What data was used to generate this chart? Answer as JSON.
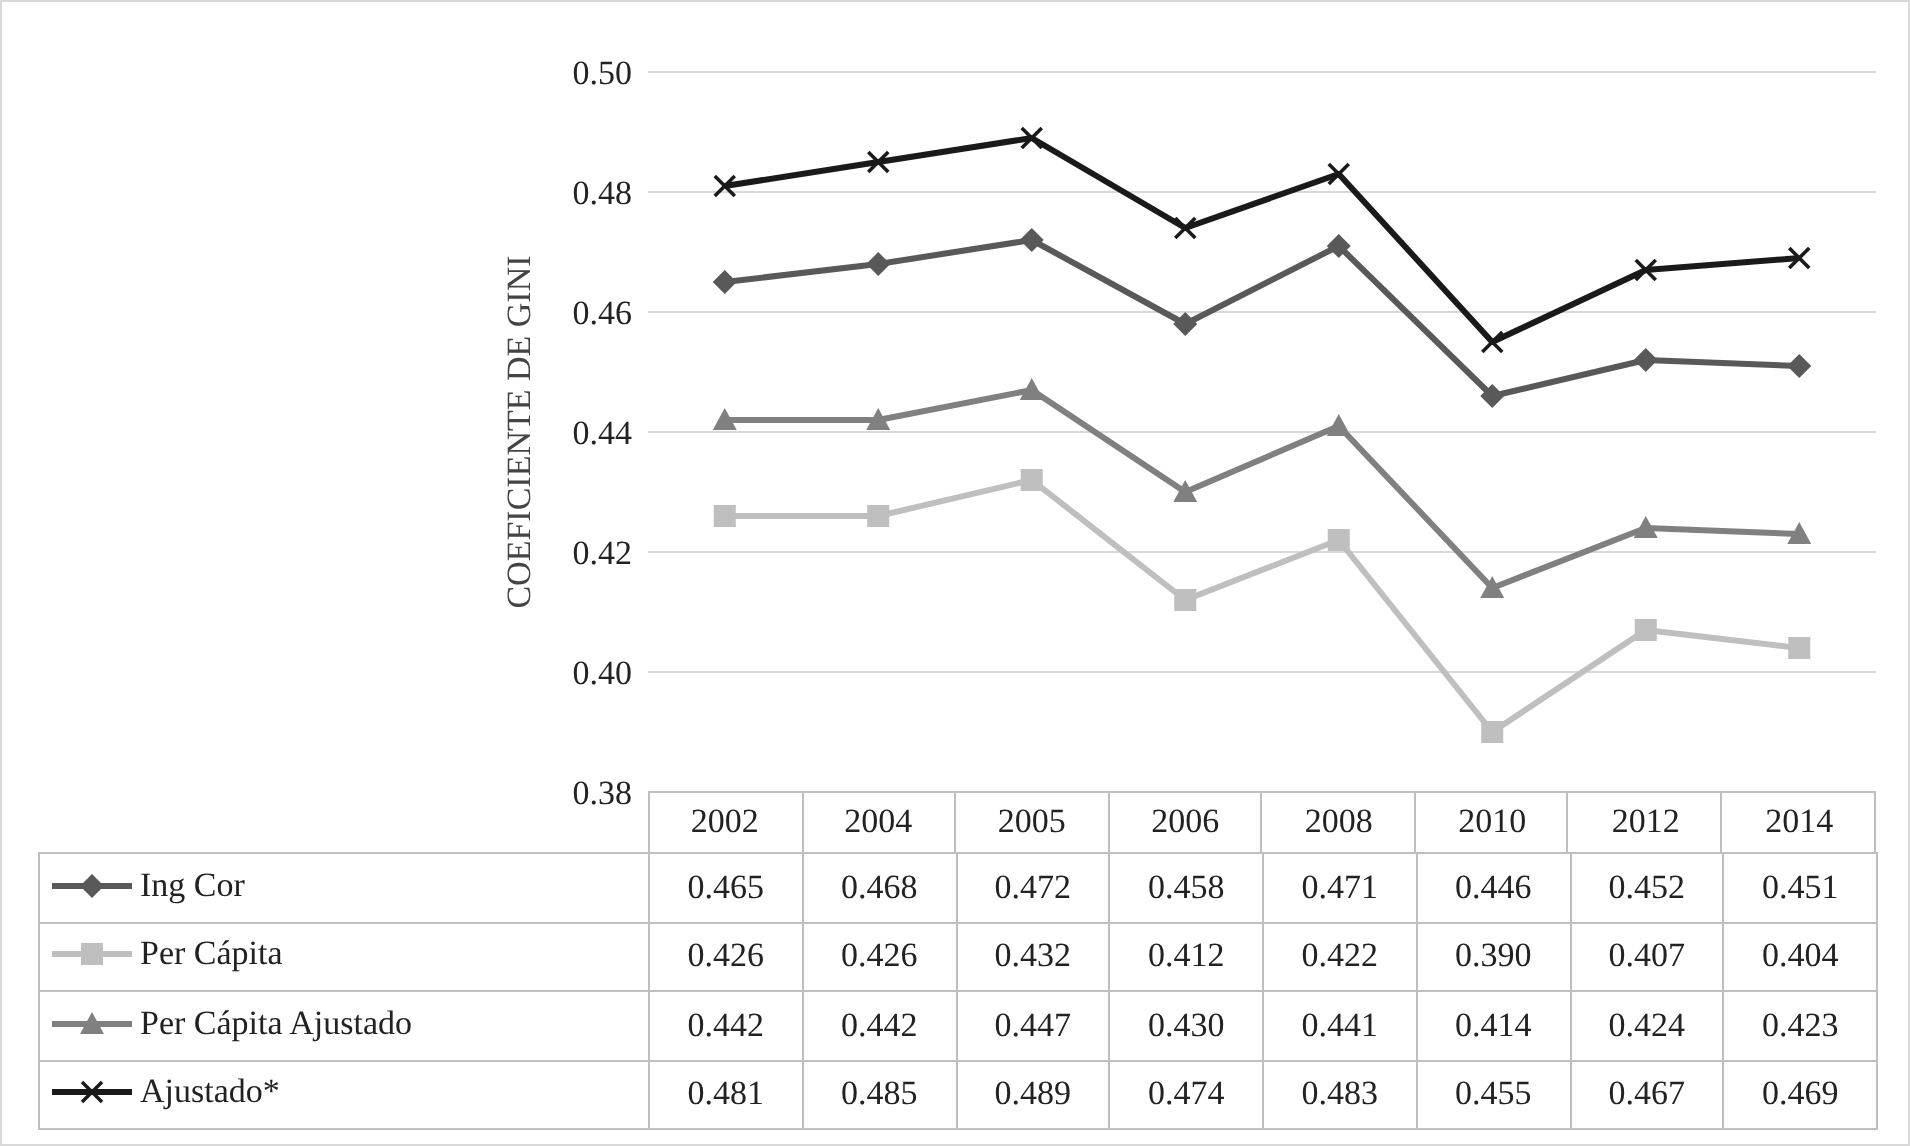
{
  "chart_data": {
    "type": "line",
    "ylabel": "COEFICIENTE DE GINI",
    "categories": [
      "2002",
      "2004",
      "2005",
      "2006",
      "2008",
      "2010",
      "2012",
      "2014"
    ],
    "ylim": [
      0.38,
      0.5
    ],
    "yticks": [
      {
        "value": 0.38,
        "label": "0.38"
      },
      {
        "value": 0.4,
        "label": "0.40"
      },
      {
        "value": 0.42,
        "label": "0.42"
      },
      {
        "value": 0.44,
        "label": "0.44"
      },
      {
        "value": 0.46,
        "label": "0.46"
      },
      {
        "value": 0.48,
        "label": "0.48"
      },
      {
        "value": 0.5,
        "label": "0.50"
      }
    ],
    "grid": "y",
    "legend": "bottom left",
    "line_style": "solid",
    "series": [
      {
        "name": "Ing Cor",
        "color": "#595959",
        "marker": "diamond",
        "values": [
          0.465,
          0.468,
          0.472,
          0.458,
          0.471,
          0.446,
          0.452,
          0.451
        ],
        "value_labels": [
          "0.465",
          "0.468",
          "0.472",
          "0.458",
          "0.471",
          "0.446",
          "0.452",
          "0.451"
        ]
      },
      {
        "name": "Per Cápita",
        "color": "#bfbfbf",
        "marker": "square",
        "values": [
          0.426,
          0.426,
          0.432,
          0.412,
          0.422,
          0.39,
          0.407,
          0.404
        ],
        "value_labels": [
          "0.426",
          "0.426",
          "0.432",
          "0.412",
          "0.422",
          "0.390",
          "0.407",
          "0.404"
        ]
      },
      {
        "name": "Per Cápita Ajustado",
        "color": "#808080",
        "marker": "triangle",
        "values": [
          0.442,
          0.442,
          0.447,
          0.43,
          0.441,
          0.414,
          0.424,
          0.423
        ],
        "value_labels": [
          "0.442",
          "0.442",
          "0.447",
          "0.430",
          "0.441",
          "0.414",
          "0.424",
          "0.423"
        ]
      },
      {
        "name": "Ajustado*",
        "color": "#1a1a1a",
        "marker": "cross",
        "values": [
          0.481,
          0.485,
          0.489,
          0.474,
          0.483,
          0.455,
          0.467,
          0.469
        ],
        "value_labels": [
          "0.481",
          "0.485",
          "0.489",
          "0.474",
          "0.483",
          "0.455",
          "0.467",
          "0.469"
        ]
      }
    ]
  }
}
